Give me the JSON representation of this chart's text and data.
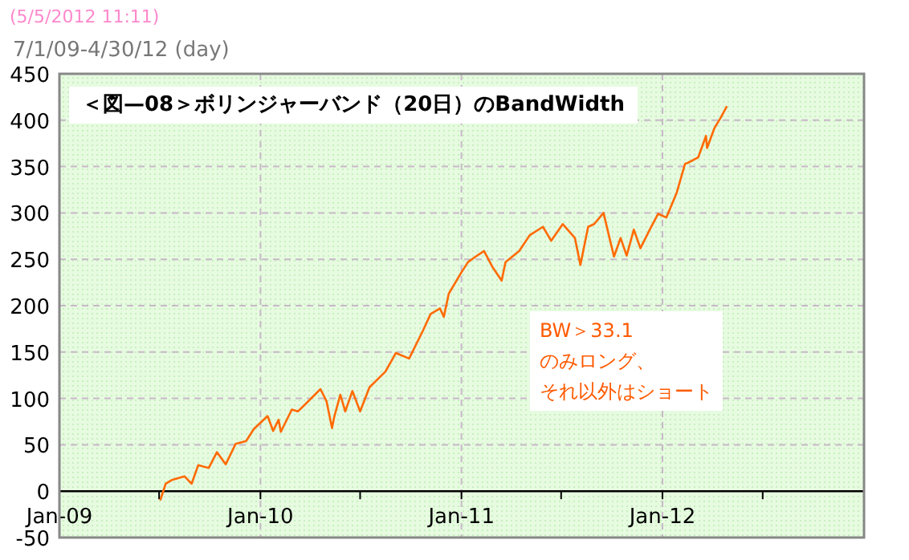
{
  "chart_data": {
    "type": "line",
    "title": "＜図—08＞ボリンジャーバンド（20日）のBandWidth",
    "subtitle": "7/1/09-4/30/12 (day)",
    "annotations": [
      "(5/5/2012 11:11)",
      "BW＞33.1",
      "のみロング、",
      "それ以外はショート"
    ],
    "x": [
      "2009-07-03",
      "2009-07-13",
      "2009-07-24",
      "2009-08-16",
      "2009-08-29",
      "2009-09-10",
      "2009-09-29",
      "2009-10-14",
      "2009-10-30",
      "2009-11-17",
      "2009-12-06",
      "2009-12-20",
      "2010-01-14",
      "2010-01-24",
      "2010-02-03",
      "2010-02-07",
      "2010-02-27",
      "2010-03-10",
      "2010-03-24",
      "2010-04-20",
      "2010-05-01",
      "2010-05-11",
      "2010-05-15",
      "2010-05-26",
      "2010-06-04",
      "2010-06-17",
      "2010-07-01",
      "2010-07-18",
      "2010-08-16",
      "2010-09-04",
      "2010-09-28",
      "2010-10-23",
      "2010-11-06",
      "2010-11-23",
      "2010-11-30",
      "2010-12-09",
      "2011-01-01",
      "2011-01-13",
      "2011-01-27",
      "2011-02-11",
      "2011-02-26",
      "2011-03-15",
      "2011-03-22",
      "2011-04-16",
      "2011-05-05",
      "2011-05-29",
      "2011-06-13",
      "2011-07-04",
      "2011-07-26",
      "2011-08-05",
      "2011-08-19",
      "2011-08-30",
      "2011-09-16",
      "2011-09-28",
      "2011-10-05",
      "2011-10-17",
      "2011-10-28",
      "2011-11-10",
      "2011-11-22",
      "2011-12-09",
      "2011-12-24",
      "2012-01-08",
      "2012-01-27",
      "2012-02-11",
      "2012-02-16",
      "2012-03-06",
      "2012-03-20",
      "2012-03-22",
      "2012-04-04",
      "2012-04-16",
      "2012-04-27"
    ],
    "series": [
      {
        "color": "#ff6a00",
        "values": [
          -10,
          8,
          12,
          16,
          8,
          28,
          25,
          42,
          29,
          51,
          54,
          67,
          81,
          65,
          77,
          64,
          88,
          86,
          94,
          110,
          97,
          68,
          80,
          104,
          86,
          108,
          86,
          112,
          129,
          149,
          143,
          173,
          191,
          197,
          188,
          213,
          236,
          247,
          253,
          259,
          242,
          227,
          247,
          259,
          276,
          285,
          270,
          288,
          273,
          244,
          285,
          288,
          300,
          270,
          253,
          273,
          254,
          282,
          262,
          282,
          299,
          295,
          322,
          353,
          354,
          360,
          383,
          370,
          391,
          403,
          415
        ]
      }
    ],
    "xlim": [
      "2009-01-01",
      "2013-01-01"
    ],
    "xticks": [
      {
        "value": "2009-01-01",
        "label": "Jan-09"
      },
      {
        "value": "2009-07-01",
        "label": null
      },
      {
        "value": "2010-01-01",
        "label": "Jan-10"
      },
      {
        "value": "2010-07-01",
        "label": null
      },
      {
        "value": "2011-01-01",
        "label": "Jan-11"
      },
      {
        "value": "2011-07-01",
        "label": null
      },
      {
        "value": "2012-01-01",
        "label": "Jan-12"
      },
      {
        "value": "2012-07-01",
        "label": null
      },
      {
        "value": "2013-01-01",
        "label": null
      }
    ],
    "ylim": [
      -50,
      450
    ],
    "yticks": [
      -50,
      0,
      50,
      100,
      150,
      200,
      250,
      300,
      350,
      400,
      450
    ],
    "grid": true,
    "marker": "none",
    "line_style": "solid"
  }
}
